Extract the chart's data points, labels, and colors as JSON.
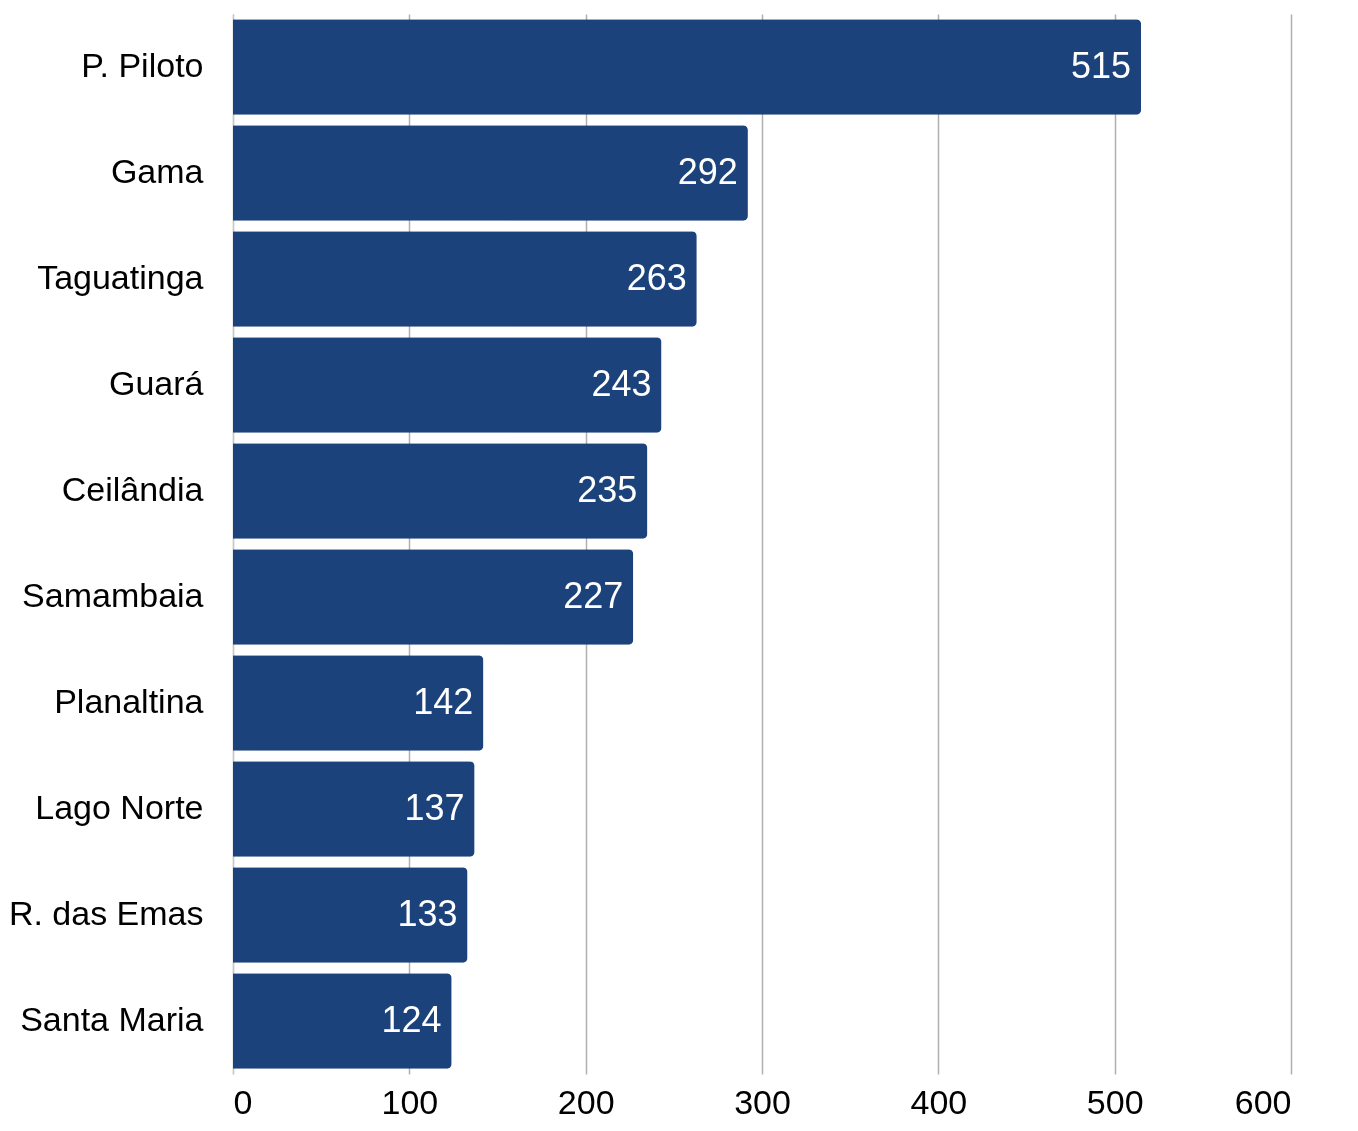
{
  "chart_data": {
    "type": "bar",
    "orientation": "horizontal",
    "categories": [
      "P. Piloto",
      "Gama",
      "Taguatinga",
      "Guará",
      "Ceilândia",
      "Samambaia",
      "Planaltina",
      "Lago Norte",
      "R. das Emas",
      "Santa Maria"
    ],
    "values": [
      515,
      292,
      263,
      243,
      235,
      227,
      142,
      137,
      133,
      124
    ],
    "color": "#1b427a",
    "xlim": [
      0,
      600
    ],
    "xticks": [
      0,
      100,
      200,
      300,
      400,
      500,
      600
    ],
    "grid": "x",
    "data_labels": true
  }
}
